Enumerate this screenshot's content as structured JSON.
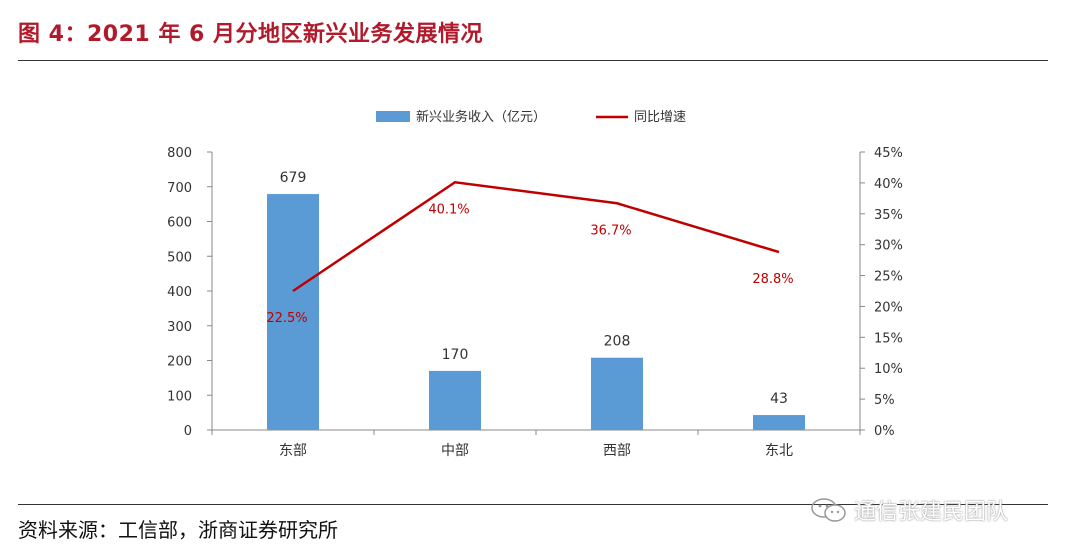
{
  "title": "图 4：2021 年 6 月分地区新兴业务发展情况",
  "source": "资料来源：工信部，浙商证券研究所",
  "watermark": {
    "text": "通信张建民团队",
    "icon": "wechat-icon"
  },
  "colors": {
    "bar": "#5b9bd5",
    "line": "#c00000",
    "title": "#b11a2b"
  },
  "chart_data": {
    "type": "bar",
    "categories": [
      "东部",
      "中部",
      "西部",
      "东北"
    ],
    "series": [
      {
        "name": "新兴业务收入（亿元）",
        "type": "bar",
        "axis": "left",
        "values": [
          679,
          170,
          208,
          43
        ]
      },
      {
        "name": "同比增速",
        "type": "line",
        "axis": "right",
        "values": [
          22.5,
          40.1,
          36.7,
          28.8
        ],
        "unit": "%"
      }
    ],
    "bar_labels": [
      "679",
      "170",
      "208",
      "43"
    ],
    "line_labels": [
      "22.5%",
      "40.1%",
      "36.7%",
      "28.8%"
    ],
    "left_axis": {
      "min": 0,
      "max": 800,
      "ticks": [
        "0",
        "100",
        "200",
        "300",
        "400",
        "500",
        "600",
        "700",
        "800"
      ]
    },
    "right_axis": {
      "min": 0,
      "max": 45,
      "ticks": [
        "0%",
        "5%",
        "10%",
        "15%",
        "20%",
        "25%",
        "30%",
        "35%",
        "40%",
        "45%"
      ]
    },
    "legend_position": "top",
    "grid": false
  }
}
